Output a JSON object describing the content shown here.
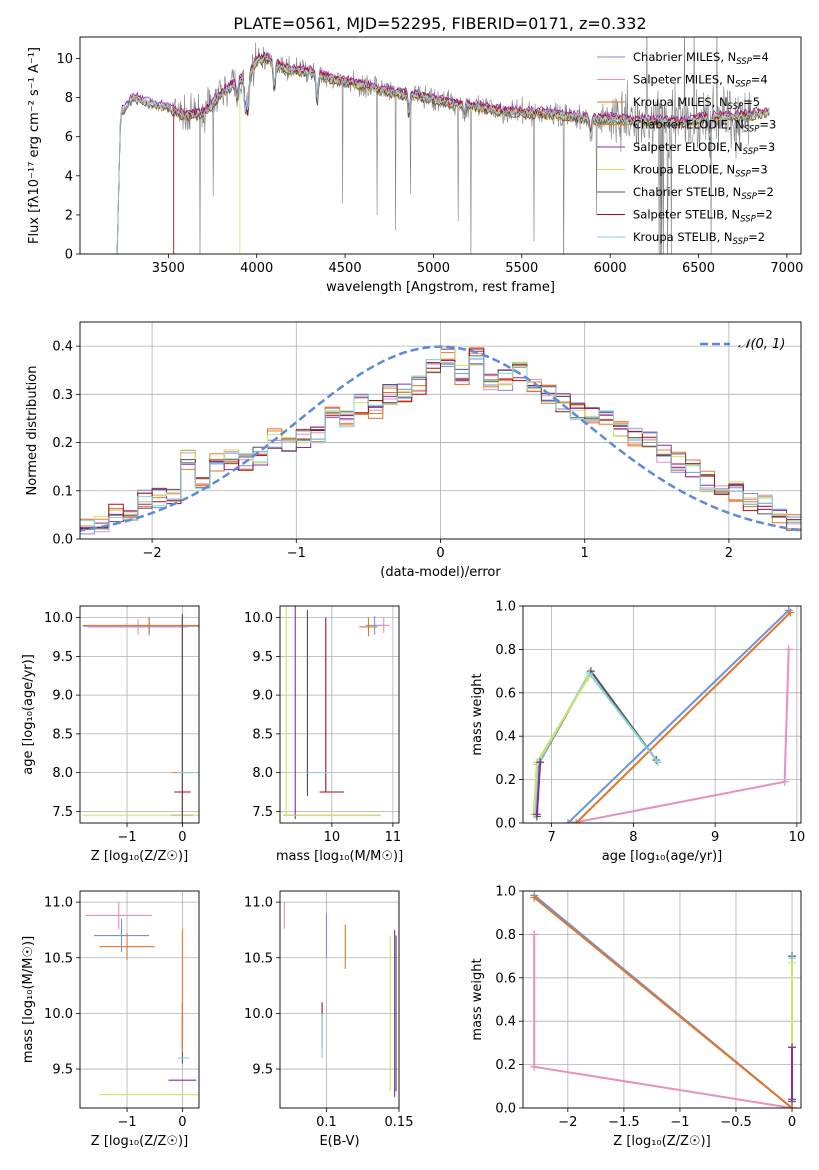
{
  "title": "PLATE=0561, MJD=52295, FIBERID=0171, z=0.332",
  "colors": {
    "Chabrier MILES": "#6f94dc",
    "Salpeter MILES": "#e88fbc",
    "Kroupa MILES": "#e0762a",
    "Chabrier ELODIE": "#f07c2a",
    "Salpeter ELODIE": "#8c2aa6",
    "Kroupa ELODIE": "#cbe56a",
    "Chabrier STELIB": "#555555",
    "Salpeter STELIB": "#a0101a",
    "Kroupa STELIB": "#87d2e0",
    "data": "#808080",
    "normal": "#5b8bd9"
  },
  "chart_data": [
    {
      "id": "spectrum",
      "type": "line",
      "xlabel": "wavelength [Angstrom, rest frame]",
      "ylabel": "Flux [fλ10⁻¹⁷ erg cm⁻² s⁻¹ A⁻¹]",
      "xlim": [
        3000,
        7080
      ],
      "ylim": [
        0,
        11.1
      ],
      "xticks": [
        3500,
        4000,
        4500,
        5000,
        5500,
        6000,
        6500,
        7000
      ],
      "yticks": [
        0,
        2,
        4,
        6,
        8,
        10
      ],
      "grid": false,
      "legend_position": "top-right",
      "data_range": [
        3520,
        6800
      ],
      "legend": [
        {
          "name": "Chabrier MILES",
          "nssp": "4"
        },
        {
          "name": "Salpeter MILES",
          "nssp": "4"
        },
        {
          "name": "Kroupa MILES",
          "nssp": "5"
        },
        {
          "name": "Chabrier ELODIE",
          "nssp": "3"
        },
        {
          "name": "Salpeter ELODIE",
          "nssp": "3"
        },
        {
          "name": "Kroupa ELODIE",
          "nssp": "3"
        },
        {
          "name": "Chabrier STELIB",
          "nssp": "2"
        },
        {
          "name": "Salpeter STELIB",
          "nssp": "2"
        },
        {
          "name": "Kroupa STELIB",
          "nssp": "2"
        }
      ],
      "model_curve": {
        "x": [
          3210,
          3230,
          3300,
          3400,
          3500,
          3550,
          3600,
          3700,
          3800,
          3900,
          3950,
          4000,
          4050,
          4100,
          4200,
          4300,
          4400,
          4500,
          4600,
          4700,
          4800,
          4900,
          5000,
          5100,
          5200,
          5300,
          5400,
          5500,
          5600,
          5700,
          5800,
          5900,
          6000,
          6100,
          6200,
          6300,
          6400,
          6500,
          6600,
          6700,
          6800,
          6900
        ],
        "y": [
          0,
          7.2,
          8.0,
          7.7,
          7.5,
          7.2,
          7.1,
          7.2,
          8.2,
          8.9,
          9.0,
          9.9,
          10.0,
          9.7,
          9.4,
          9.3,
          9.0,
          8.8,
          8.6,
          8.4,
          8.2,
          8.1,
          7.9,
          7.7,
          7.6,
          7.4,
          7.3,
          7.2,
          7.2,
          7.1,
          7.0,
          6.9,
          6.9,
          6.8,
          6.8,
          6.8,
          6.7,
          6.9,
          7.0,
          7.0,
          7.1,
          7.3
        ]
      },
      "model_offsets": [
        0.0,
        0.12,
        -0.1,
        0.05,
        0.18,
        -0.05,
        -0.12,
        0.08,
        0.02
      ]
    },
    {
      "id": "residuals",
      "type": "line",
      "xlabel": "(data-model)/error",
      "ylabel": "Normed distribution",
      "xlim": [
        -2.5,
        2.5
      ],
      "ylim": [
        0,
        0.45
      ],
      "xticks": [
        -2,
        -1,
        0,
        1,
        2
      ],
      "yticks": [
        0.0,
        0.1,
        0.2,
        0.3,
        0.4
      ],
      "grid": true,
      "legend_position": "top-right",
      "normal_label": "𝒩(0, 1)",
      "hist_bins": [
        -2.5,
        2.5,
        50
      ],
      "hist_profile": [
        0.03,
        0.035,
        0.05,
        0.06,
        0.08,
        0.085,
        0.09,
        0.165,
        0.12,
        0.155,
        0.165,
        0.16,
        0.175,
        0.21,
        0.19,
        0.21,
        0.22,
        0.27,
        0.25,
        0.28,
        0.27,
        0.3,
        0.3,
        0.32,
        0.36,
        0.38,
        0.34,
        0.38,
        0.33,
        0.33,
        0.35,
        0.31,
        0.3,
        0.28,
        0.27,
        0.26,
        0.25,
        0.23,
        0.21,
        0.2,
        0.18,
        0.16,
        0.15,
        0.12,
        0.11,
        0.1,
        0.08,
        0.07,
        0.05,
        0.04
      ]
    },
    {
      "id": "age-vs-Z",
      "type": "scatter",
      "xlabel": "Z [log₁₀(Z/Z☉)]",
      "ylabel": "age  [log₁₀(age/yr)]",
      "xlim": [
        -1.85,
        0.3
      ],
      "ylim": [
        7.35,
        10.15
      ],
      "xticks": [
        -1,
        0
      ],
      "yticks": [
        7.5,
        8.0,
        8.5,
        9.0,
        9.5,
        10.0
      ],
      "grid": true,
      "points": [
        {
          "model": "Chabrier MILES",
          "x": -0.6,
          "y": 9.89,
          "xerr": 1.2,
          "yerr": 0.12
        },
        {
          "model": "Salpeter MILES",
          "x": -0.8,
          "y": 9.88,
          "xerr": 0.9,
          "yerr": 0.1
        },
        {
          "model": "Kroupa MILES",
          "x": -0.6,
          "y": 9.9,
          "xerr": 1.2,
          "yerr": 0.1
        },
        {
          "model": "Chabrier ELODIE",
          "x": 0.0,
          "y": 8.0,
          "xerr": 0.2,
          "yerr": 2.0
        },
        {
          "model": "Salpeter ELODIE",
          "x": 0.0,
          "y": 7.45,
          "xerr": 0.2,
          "yerr": 2.6
        },
        {
          "model": "Kroupa ELODIE",
          "x": -0.5,
          "y": 7.45,
          "xerr": 1.3,
          "yerr": 0.0
        },
        {
          "model": "Chabrier STELIB",
          "x": 0.0,
          "y": 8.0,
          "xerr": 0.0,
          "yerr": 2.0
        },
        {
          "model": "Salpeter STELIB",
          "x": 0.0,
          "y": 7.75,
          "xerr": 0.15,
          "yerr": 0.0
        },
        {
          "model": "Kroupa STELIB",
          "x": 0.1,
          "y": 8.0,
          "xerr": 0.2,
          "yerr": 0.0
        }
      ]
    },
    {
      "id": "age-vs-mass",
      "type": "scatter",
      "xlabel": "mass [log₁₀(M/M☉)]",
      "ylabel": "",
      "xlim": [
        9.15,
        11.1
      ],
      "ylim": [
        7.35,
        10.15
      ],
      "xticks": [
        9,
        10,
        11
      ],
      "yticks": [
        7.5,
        8.0,
        8.5,
        9.0,
        9.5,
        10.0
      ],
      "grid": true,
      "points": [
        {
          "model": "Chabrier MILES",
          "x": 10.7,
          "y": 9.9,
          "xerr": 0.15,
          "yerr": 0.12
        },
        {
          "model": "Salpeter MILES",
          "x": 10.85,
          "y": 9.9,
          "xerr": 0.1,
          "yerr": 0.1
        },
        {
          "model": "Kroupa MILES",
          "x": 10.6,
          "y": 9.88,
          "xerr": 0.15,
          "yerr": 0.12
        },
        {
          "model": "Chabrier ELODIE",
          "x": 10.0,
          "y": 7.45,
          "xerr": 0.8,
          "yerr": 0.0
        },
        {
          "model": "Salpeter ELODIE",
          "x": 9.4,
          "y": 8.8,
          "xerr": 0.0,
          "yerr": 1.4
        },
        {
          "model": "Kroupa ELODIE",
          "x": 10.0,
          "y": 7.45,
          "xerr": 0.8,
          "yerr": 0.0
        },
        {
          "model": "Chabrier STELIB",
          "x": 9.6,
          "y": 8.9,
          "xerr": 0.0,
          "yerr": 1.2
        },
        {
          "model": "Salpeter STELIB",
          "x": 10.0,
          "y": 7.75,
          "xerr": 0.2,
          "yerr": 0.0
        },
        {
          "model": "Kroupa STELIB",
          "x": 9.8,
          "y": 8.0,
          "xerr": 0.2,
          "yerr": 0.0
        }
      ],
      "extra_vlines": [
        {
          "model": "Kroupa ELODIE",
          "x": 9.25,
          "y0": 7.45,
          "y1": 10.15
        },
        {
          "model": "Salpeter STELIB",
          "x": 9.9,
          "y0": 7.75,
          "y1": 10.0
        },
        {
          "model": "Chabrier STELIB",
          "x": 9.6,
          "y0": 7.75,
          "y1": 10.05
        }
      ]
    },
    {
      "id": "weight-vs-age",
      "type": "line",
      "xlabel": "age  [log₁₀(age/yr)]",
      "ylabel": "mass weight",
      "xlim": [
        6.65,
        10.05
      ],
      "ylim": [
        0,
        1
      ],
      "xticks": [
        7,
        8,
        9,
        10
      ],
      "yticks": [
        0.0,
        0.2,
        0.4,
        0.6,
        0.8,
        1.0
      ],
      "grid": true,
      "series": [
        {
          "model": "Salpeter MILES",
          "x": [
            7.25,
            9.85,
            9.9
          ],
          "y": [
            0.0,
            0.19,
            0.8
          ]
        },
        {
          "model": "Chabrier MILES",
          "x": [
            7.2,
            9.9
          ],
          "y": [
            0.0,
            0.98
          ]
        },
        {
          "model": "Kroupa MILES",
          "x": [
            7.3,
            9.92
          ],
          "y": [
            0.0,
            0.97
          ]
        },
        {
          "model": "Chabrier STELIB",
          "x": [
            6.82,
            6.85,
            7.48,
            8.28
          ],
          "y": [
            0.03,
            0.28,
            0.7,
            0.29
          ]
        },
        {
          "model": "Kroupa STELIB",
          "x": [
            6.8,
            6.83,
            7.46,
            8.3
          ],
          "y": [
            0.04,
            0.27,
            0.69,
            0.28
          ]
        },
        {
          "model": "Kroupa ELODIE",
          "x": [
            6.78,
            6.82,
            7.45
          ],
          "y": [
            0.04,
            0.28,
            0.67
          ]
        },
        {
          "model": "Salpeter ELODIE",
          "x": [
            6.82,
            6.86
          ],
          "y": [
            0.04,
            0.28
          ]
        }
      ]
    },
    {
      "id": "mass-vs-Z",
      "type": "scatter",
      "xlabel": "Z [log₁₀(Z/Z☉)]",
      "ylabel": "mass [log₁₀(M/M☉)]",
      "xlim": [
        -1.85,
        0.3
      ],
      "ylim": [
        9.15,
        11.1
      ],
      "xticks": [
        -1,
        0
      ],
      "yticks": [
        9.5,
        10.0,
        10.5,
        11.0
      ],
      "grid": true,
      "points": [
        {
          "model": "Salpeter MILES",
          "x": -1.15,
          "y": 10.88,
          "xerr": 0.6,
          "yerr": 0.12
        },
        {
          "model": "Chabrier MILES",
          "x": -1.1,
          "y": 10.7,
          "xerr": 0.5,
          "yerr": 0.15
        },
        {
          "model": "Kroupa MILES",
          "x": -1.0,
          "y": 10.6,
          "xerr": 0.5,
          "yerr": 0.12
        },
        {
          "model": "Salpeter ELODIE",
          "x": 0.0,
          "y": 9.4,
          "xerr": 0.25,
          "yerr": 0.0
        },
        {
          "model": "Kroupa ELODIE",
          "x": -0.6,
          "y": 9.27,
          "xerr": 0.9,
          "yerr": 0.0
        },
        {
          "model": "Salpeter STELIB",
          "x": 0.0,
          "y": 9.9,
          "xerr": 0.0,
          "yerr": 0.2
        },
        {
          "model": "Chabrier STELIB",
          "x": 0.0,
          "y": 9.75,
          "xerr": 0.0,
          "yerr": 0.2
        },
        {
          "model": "Kroupa STELIB",
          "x": 0.02,
          "y": 9.6,
          "xerr": 0.1,
          "yerr": 0.0
        },
        {
          "model": "Chabrier ELODIE",
          "x": 0.0,
          "y": 10.2,
          "xerr": 0.0,
          "yerr": 0.55
        }
      ]
    },
    {
      "id": "mass-vs-EBV",
      "type": "scatter",
      "xlabel": "E(B-V)",
      "ylabel": "",
      "xlim": [
        0.068,
        0.15
      ],
      "ylim": [
        9.15,
        11.1
      ],
      "xticks": [
        0.1,
        0.15
      ],
      "yticks": [
        9.5,
        10.0,
        10.5,
        11.0
      ],
      "grid": true,
      "points": [
        {
          "model": "Salpeter MILES",
          "x": 0.071,
          "y": 10.88,
          "xerr": 0.0,
          "yerr": 0.12
        },
        {
          "model": "Chabrier MILES",
          "x": 0.1,
          "y": 10.7,
          "xerr": 0.0,
          "yerr": 0.2
        },
        {
          "model": "Kroupa MILES",
          "x": 0.113,
          "y": 10.6,
          "xerr": 0.0,
          "yerr": 0.2
        },
        {
          "model": "Salpeter STELIB",
          "x": 0.097,
          "y": 9.9,
          "xerr": 0.0,
          "yerr": 0.2
        },
        {
          "model": "Kroupa STELIB",
          "x": 0.097,
          "y": 9.8,
          "xerr": 0.0,
          "yerr": 0.2
        },
        {
          "model": "Kroupa ELODIE",
          "x": 0.144,
          "y": 10.0,
          "xerr": 0.0,
          "yerr": 0.7
        },
        {
          "model": "Salpeter ELODIE",
          "x": 0.147,
          "y": 10.0,
          "xerr": 0.0,
          "yerr": 0.75
        },
        {
          "model": "Chabrier STELIB",
          "x": 0.148,
          "y": 10.0,
          "xerr": 0.0,
          "yerr": 0.7
        }
      ]
    },
    {
      "id": "weight-vs-Z",
      "type": "line",
      "xlabel": "Z [log₁₀(Z/Z☉)]",
      "ylabel": "mass weight",
      "xlim": [
        -2.4,
        0.08
      ],
      "ylim": [
        0,
        1
      ],
      "xticks": [
        -2.0,
        -1.5,
        -1.0,
        -0.5,
        0.0
      ],
      "yticks": [
        0.0,
        0.2,
        0.4,
        0.6,
        0.8,
        1.0
      ],
      "grid": true,
      "series": [
        {
          "model": "Salpeter MILES",
          "x": [
            0.0,
            -2.3,
            -2.3
          ],
          "y": [
            0.0,
            0.19,
            0.8
          ]
        },
        {
          "model": "Chabrier MILES",
          "x": [
            -2.3,
            0.0
          ],
          "y": [
            0.98,
            0.0
          ]
        },
        {
          "model": "Kroupa MILES",
          "x": [
            -2.3,
            0.0
          ],
          "y": [
            0.97,
            0.0
          ]
        },
        {
          "model": "Chabrier STELIB",
          "x": [
            0.0,
            0.0
          ],
          "y": [
            0.03,
            0.7
          ]
        },
        {
          "model": "Kroupa STELIB",
          "x": [
            0.0,
            0.0
          ],
          "y": [
            0.28,
            0.69
          ]
        },
        {
          "model": "Kroupa ELODIE",
          "x": [
            0.0,
            0.0
          ],
          "y": [
            0.04,
            0.67
          ]
        },
        {
          "model": "Salpeter ELODIE",
          "x": [
            0.0,
            0.0
          ],
          "y": [
            0.04,
            0.28
          ]
        }
      ]
    }
  ]
}
